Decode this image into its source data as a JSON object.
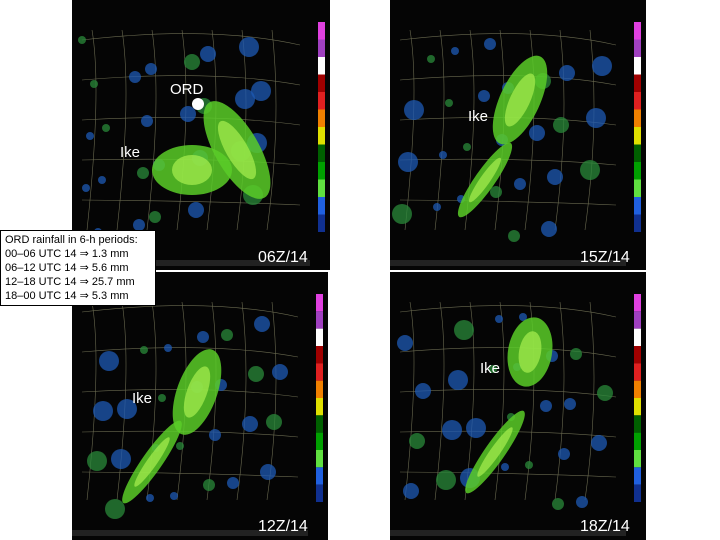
{
  "panels": [
    {
      "time": "06Z/14",
      "labels": [
        "ORD",
        "Ike"
      ]
    },
    {
      "time": "15Z/14",
      "labels": [
        "Ike"
      ]
    },
    {
      "time": "12Z/14",
      "labels": [
        "Ike"
      ]
    },
    {
      "time": "18Z/14",
      "labels": [
        "Ike"
      ]
    }
  ],
  "rainfall_box": {
    "title": "ORD rainfall in 6-h periods:",
    "lines": [
      "00–06 UTC 14 ⇒ 1.3 mm",
      "06–12 UTC 14 ⇒ 5.6 mm",
      "12–18 UTC 14 ⇒ 25.7 mm",
      "18–00 UTC 14 ⇒ 5.3 mm"
    ]
  }
}
